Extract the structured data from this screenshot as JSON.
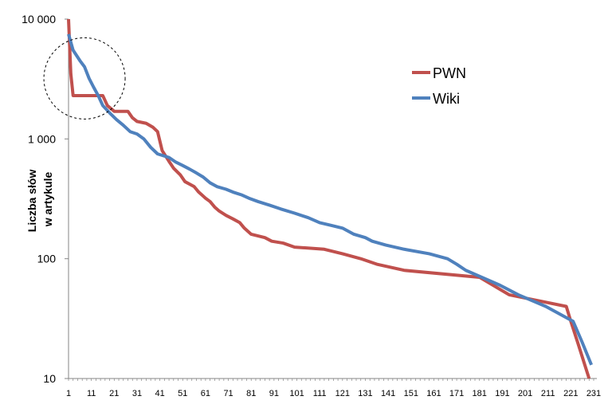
{
  "chart_data": {
    "type": "line",
    "title": "",
    "xlabel": "",
    "ylabel": [
      "Liczba słów",
      "w artykule"
    ],
    "yscale": "log",
    "ylim": [
      10,
      10000
    ],
    "xlim": [
      1,
      231
    ],
    "y_ticks": [
      {
        "value": 10000,
        "label": "10 000"
      },
      {
        "value": 1000,
        "label": "1 000"
      },
      {
        "value": 100,
        "label": "100"
      },
      {
        "value": 10,
        "label": "10"
      }
    ],
    "x_ticks": [
      1,
      11,
      21,
      31,
      41,
      51,
      61,
      71,
      81,
      91,
      101,
      111,
      121,
      131,
      141,
      151,
      161,
      171,
      181,
      191,
      201,
      211,
      221,
      231
    ],
    "legend_position": "top-right",
    "grid": false,
    "series": [
      {
        "name": "PWN",
        "color": "#c0504d",
        "points": [
          [
            1,
            10000
          ],
          [
            2,
            3500
          ],
          [
            3,
            2300
          ],
          [
            16,
            2300
          ],
          [
            18,
            1900
          ],
          [
            21,
            1700
          ],
          [
            27,
            1700
          ],
          [
            29,
            1500
          ],
          [
            31,
            1400
          ],
          [
            35,
            1350
          ],
          [
            38,
            1250
          ],
          [
            40,
            1150
          ],
          [
            42,
            800
          ],
          [
            45,
            650
          ],
          [
            47,
            570
          ],
          [
            50,
            500
          ],
          [
            52,
            440
          ],
          [
            56,
            400
          ],
          [
            58,
            360
          ],
          [
            61,
            320
          ],
          [
            63,
            300
          ],
          [
            65,
            270
          ],
          [
            67,
            250
          ],
          [
            70,
            230
          ],
          [
            73,
            215
          ],
          [
            76,
            200
          ],
          [
            78,
            180
          ],
          [
            81,
            160
          ],
          [
            84,
            155
          ],
          [
            87,
            150
          ],
          [
            90,
            140
          ],
          [
            95,
            135
          ],
          [
            100,
            125
          ],
          [
            113,
            120
          ],
          [
            121,
            110
          ],
          [
            129,
            100
          ],
          [
            136,
            90
          ],
          [
            148,
            80
          ],
          [
            181,
            70
          ],
          [
            194,
            50
          ],
          [
            219,
            40
          ],
          [
            221,
            30
          ],
          [
            224,
            20
          ],
          [
            229,
            10
          ]
        ]
      },
      {
        "name": "Wiki",
        "color": "#4f81bd",
        "points": [
          [
            1,
            7500
          ],
          [
            3,
            5500
          ],
          [
            6,
            4500
          ],
          [
            8,
            4000
          ],
          [
            10,
            3200
          ],
          [
            12,
            2700
          ],
          [
            14,
            2300
          ],
          [
            16,
            1900
          ],
          [
            19,
            1650
          ],
          [
            22,
            1450
          ],
          [
            25,
            1300
          ],
          [
            28,
            1150
          ],
          [
            31,
            1100
          ],
          [
            34,
            1000
          ],
          [
            37,
            850
          ],
          [
            40,
            750
          ],
          [
            45,
            700
          ],
          [
            48,
            640
          ],
          [
            51,
            600
          ],
          [
            54,
            560
          ],
          [
            57,
            520
          ],
          [
            60,
            480
          ],
          [
            63,
            430
          ],
          [
            66,
            400
          ],
          [
            70,
            380
          ],
          [
            73,
            360
          ],
          [
            77,
            340
          ],
          [
            80,
            320
          ],
          [
            84,
            300
          ],
          [
            89,
            280
          ],
          [
            94,
            260
          ],
          [
            100,
            240
          ],
          [
            106,
            220
          ],
          [
            111,
            200
          ],
          [
            116,
            190
          ],
          [
            121,
            180
          ],
          [
            126,
            160
          ],
          [
            131,
            150
          ],
          [
            134,
            140
          ],
          [
            140,
            130
          ],
          [
            148,
            120
          ],
          [
            159,
            110
          ],
          [
            167,
            100
          ],
          [
            171,
            90
          ],
          [
            175,
            80
          ],
          [
            182,
            70
          ],
          [
            190,
            60
          ],
          [
            198,
            50
          ],
          [
            210,
            40
          ],
          [
            222,
            30
          ],
          [
            226,
            20
          ],
          [
            230,
            13
          ]
        ]
      }
    ],
    "annotations": [
      {
        "type": "dashed-circle",
        "x": 8,
        "y": 3200
      }
    ]
  }
}
